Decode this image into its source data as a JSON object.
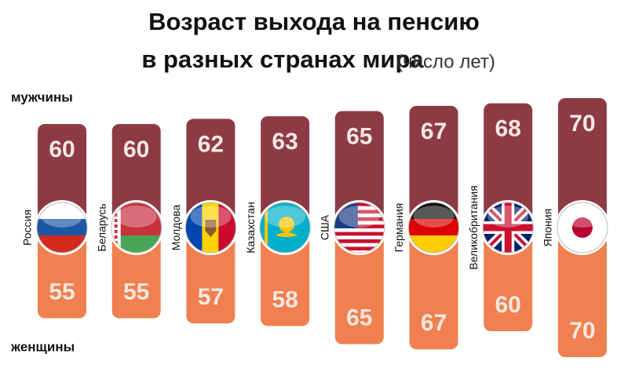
{
  "chart_data": {
    "type": "bar",
    "title": "Возраст выхода на пенсию",
    "subtitle": "в разных странах мира",
    "unit": "(число лет)",
    "categories": [
      "Россия",
      "Беларусь",
      "Молдова",
      "Казахстан",
      "США",
      "Германия",
      "Великобритания",
      "Япония"
    ],
    "series": [
      {
        "name": "мужчины",
        "color": "#8c3b45",
        "values": [
          60,
          60,
          62,
          63,
          65,
          67,
          68,
          70
        ]
      },
      {
        "name": "женщины",
        "color": "#f0804f",
        "values": [
          55,
          55,
          57,
          58,
          65,
          67,
          60,
          70
        ]
      }
    ]
  }
}
